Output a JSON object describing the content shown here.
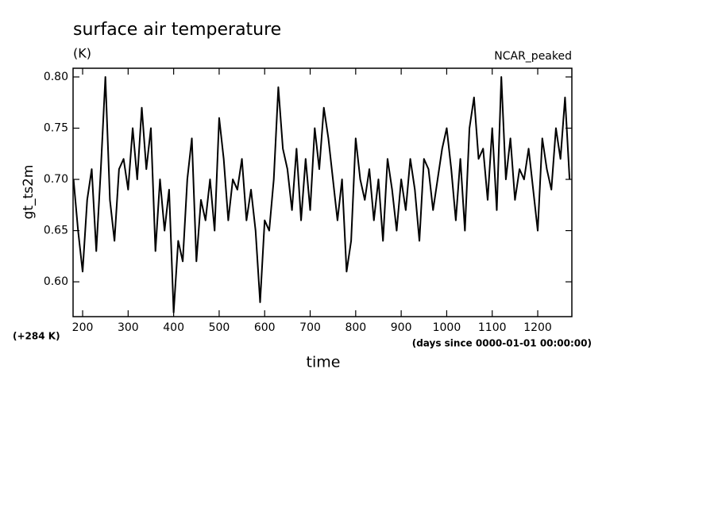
{
  "chart_data": {
    "type": "line",
    "title": "surface air temperature",
    "units": "(K)",
    "experiment": "NCAR_peaked",
    "y_label": "gt_ts2m",
    "y_offset": "(+284 K)",
    "x_label": "time",
    "x_units": "(days since 0000-01-01 00:00:00)",
    "x": [
      180,
      190,
      200,
      210,
      220,
      230,
      240,
      250,
      260,
      270,
      280,
      290,
      300,
      310,
      320,
      330,
      340,
      350,
      360,
      370,
      380,
      390,
      400,
      410,
      420,
      430,
      440,
      450,
      460,
      470,
      480,
      490,
      500,
      510,
      520,
      530,
      540,
      550,
      560,
      570,
      580,
      590,
      600,
      610,
      620,
      630,
      640,
      650,
      660,
      670,
      680,
      690,
      700,
      710,
      720,
      730,
      740,
      750,
      760,
      770,
      780,
      790,
      800,
      810,
      820,
      830,
      840,
      850,
      860,
      870,
      880,
      890,
      900,
      910,
      920,
      930,
      940,
      950,
      960,
      970,
      980,
      990,
      1000,
      1010,
      1020,
      1030,
      1040,
      1050,
      1060,
      1070,
      1080,
      1090,
      1100,
      1110,
      1120,
      1130,
      1140,
      1150,
      1160,
      1170,
      1180,
      1190,
      1200,
      1210,
      1220,
      1230,
      1240,
      1250,
      1260,
      1270
    ],
    "series": [
      {
        "name": "gt_ts2m",
        "color": "#000000",
        "values": [
          0.7,
          0.65,
          0.61,
          0.68,
          0.71,
          0.63,
          0.71,
          0.8,
          0.68,
          0.64,
          0.71,
          0.72,
          0.69,
          0.75,
          0.7,
          0.77,
          0.71,
          0.75,
          0.63,
          0.7,
          0.65,
          0.69,
          0.57,
          0.64,
          0.62,
          0.7,
          0.74,
          0.62,
          0.68,
          0.66,
          0.7,
          0.65,
          0.76,
          0.72,
          0.66,
          0.7,
          0.69,
          0.72,
          0.66,
          0.69,
          0.65,
          0.58,
          0.66,
          0.65,
          0.7,
          0.79,
          0.73,
          0.71,
          0.67,
          0.73,
          0.66,
          0.72,
          0.67,
          0.75,
          0.71,
          0.77,
          0.74,
          0.7,
          0.66,
          0.7,
          0.61,
          0.64,
          0.74,
          0.7,
          0.68,
          0.71,
          0.66,
          0.7,
          0.64,
          0.72,
          0.69,
          0.65,
          0.7,
          0.67,
          0.72,
          0.69,
          0.64,
          0.72,
          0.71,
          0.67,
          0.7,
          0.73,
          0.75,
          0.71,
          0.66,
          0.72,
          0.65,
          0.75,
          0.78,
          0.72,
          0.73,
          0.68,
          0.75,
          0.67,
          0.8,
          0.7,
          0.74,
          0.68,
          0.71,
          0.7,
          0.73,
          0.69,
          0.65,
          0.74,
          0.71,
          0.69,
          0.75,
          0.72,
          0.78,
          0.7
        ]
      }
    ],
    "xlim": [
      179,
      1275
    ],
    "ylim": [
      0.566,
      0.8085
    ],
    "xticks": [
      200,
      300,
      400,
      500,
      600,
      700,
      800,
      900,
      1000,
      1100,
      1200
    ],
    "yticks": [
      {
        "value": 0.6,
        "label": "0.60"
      },
      {
        "value": 0.65,
        "label": "0.65"
      },
      {
        "value": 0.7,
        "label": "0.70"
      },
      {
        "value": 0.75,
        "label": "0.75"
      },
      {
        "value": 0.8,
        "label": "0.80"
      }
    ]
  }
}
